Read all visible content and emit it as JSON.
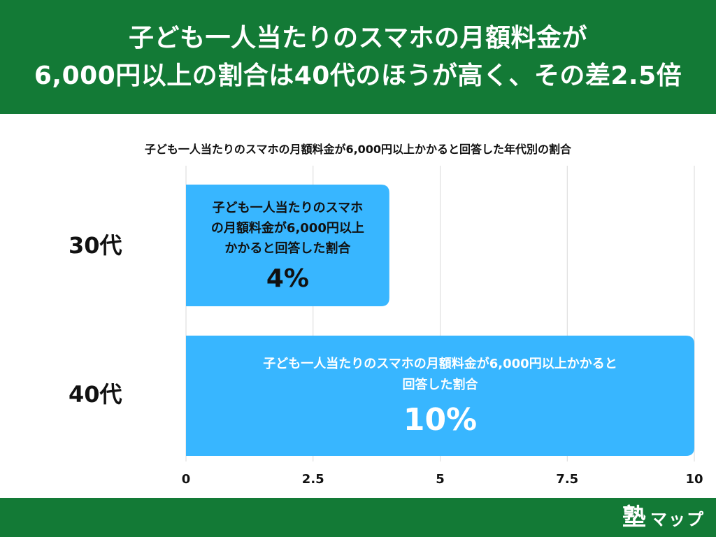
{
  "header": {
    "title_line1": "子ども一人当たりのスマホの月額料金が",
    "title_line2": "6,000円以上の割合は40代のほうが高く、その差2.5倍"
  },
  "footer": {
    "logo_kanji": "塾",
    "logo_kana": "マップ"
  },
  "colors": {
    "brand_green": "#137a36",
    "bar_blue": "#38b6ff",
    "grid": "#d9d9d9"
  },
  "chart_data": {
    "type": "bar",
    "orientation": "horizontal",
    "title": "子ども一人当たりのスマホの月額料金が6,000円以上かかると回答した年代別の割合",
    "categories": [
      "30代",
      "40代"
    ],
    "values": [
      4,
      10
    ],
    "value_labels": [
      "4%",
      "10%"
    ],
    "bar_label_lines": [
      [
        "子ども一人当たりのスマホ",
        "の月額料金が6,000円以上",
        "かかると回答した割合"
      ],
      [
        "子ども一人当たりのスマホの月額料金が6,000円以上かかると",
        "回答した割合"
      ]
    ],
    "xlim": [
      0,
      10
    ],
    "xticks": [
      "0",
      "2.5",
      "5",
      "7.5",
      "10"
    ],
    "grid": true,
    "legend": "none"
  }
}
